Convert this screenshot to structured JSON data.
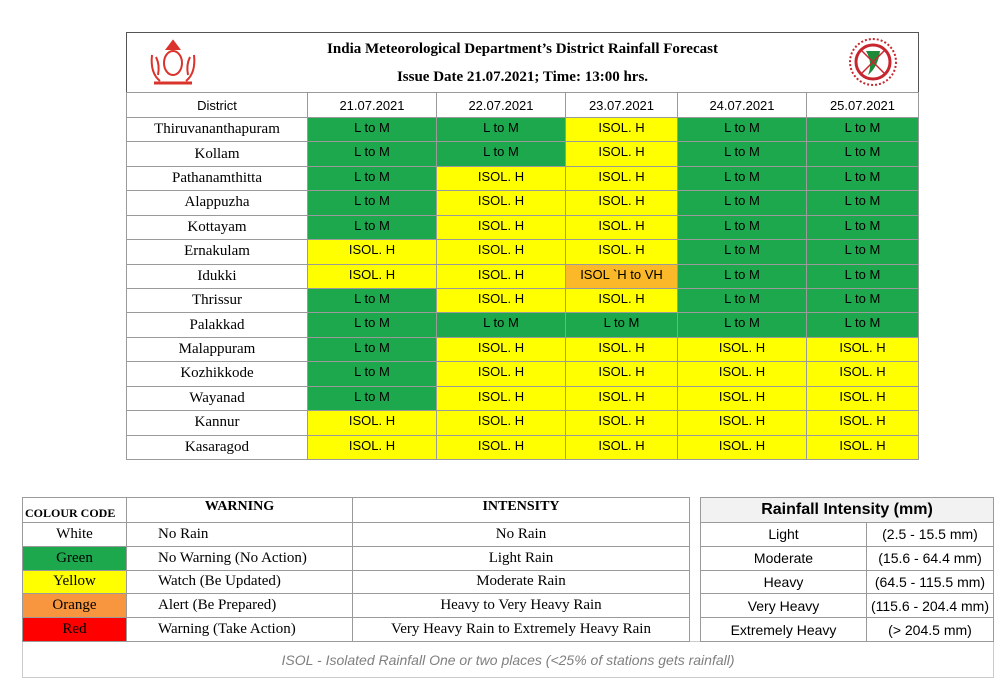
{
  "header": {
    "title": "India Meteorological Department’s District Rainfall Forecast",
    "issue": "Issue Date 21.07.2021; Time: 13:00 hrs."
  },
  "forecast": {
    "columns": [
      "District",
      "21.07.2021",
      "22.07.2021",
      "23.07.2021",
      "24.07.2021",
      "25.07.2021"
    ],
    "rows": [
      [
        "Thiruvananthapuram",
        "L to M",
        "L to M",
        "ISOL. H",
        "L to M",
        "L to M"
      ],
      [
        "Kollam",
        "L to M",
        "L to M",
        "ISOL. H",
        "L to M",
        "L to M"
      ],
      [
        "Pathanamthitta",
        "L to M",
        "ISOL. H",
        "ISOL. H",
        "L to M",
        "L to M"
      ],
      [
        "Alappuzha",
        "L to M",
        "ISOL. H",
        "ISOL. H",
        "L to M",
        "L to M"
      ],
      [
        "Kottayam",
        "L to M",
        "ISOL. H",
        "ISOL. H",
        "L to M",
        "L to M"
      ],
      [
        "Ernakulam",
        "ISOL. H",
        "ISOL. H",
        "ISOL. H",
        "L to M",
        "L to M"
      ],
      [
        "Idukki",
        "ISOL. H",
        "ISOL. H",
        "ISOL `H to VH",
        "L to M",
        "L to M"
      ],
      [
        "Thrissur",
        "L to M",
        "ISOL. H",
        "ISOL. H",
        "L to M",
        "L to M"
      ],
      [
        "Palakkad",
        "L to M",
        "L to M",
        "L to M",
        "L to M",
        "L to M"
      ],
      [
        "Malappuram",
        "L to M",
        "ISOL. H",
        "ISOL. H",
        "ISOL. H",
        "ISOL. H"
      ],
      [
        "Kozhikkode",
        "L to M",
        "ISOL. H",
        "ISOL. H",
        "ISOL. H",
        "ISOL. H"
      ],
      [
        "Wayanad",
        "L to M",
        "ISOL. H",
        "ISOL. H",
        "ISOL. H",
        "ISOL. H"
      ],
      [
        "Kannur",
        "ISOL. H",
        "ISOL. H",
        "ISOL. H",
        "ISOL. H",
        "ISOL. H"
      ],
      [
        "Kasaragod",
        "ISOL. H",
        "ISOL. H",
        "ISOL. H",
        "ISOL. H",
        "ISOL. H"
      ]
    ],
    "cell_colors": {
      "L to M": "#1ea84e",
      "ISOL. H": "#ffff00",
      "ISOL `H to VH": "#fbb829"
    }
  },
  "legend": {
    "columns": [
      "COLOUR CODE",
      "WARNING",
      "INTENSITY"
    ],
    "rows": [
      [
        "White",
        "No Rain",
        "No Rain"
      ],
      [
        "Green",
        "No Warning (No Action)",
        "Light Rain"
      ],
      [
        "Yellow",
        "Watch (Be Updated)",
        "Moderate Rain"
      ],
      [
        "Orange",
        "Alert (Be Prepared)",
        "Heavy to Very Heavy Rain"
      ],
      [
        "Red",
        "Warning (Take Action)",
        "Very Heavy Rain to Extremely Heavy Rain"
      ]
    ],
    "colors": [
      "#ffffff",
      "#1ea84e",
      "#ffff00",
      "#f7963f",
      "#ff0000"
    ]
  },
  "intensity": {
    "title": "Rainfall Intensity (mm)",
    "rows": [
      [
        "Light",
        "(2.5 - 15.5 mm)"
      ],
      [
        "Moderate",
        "(15.6 - 64.4 mm)"
      ],
      [
        "Heavy",
        "(64.5 - 115.5 mm)"
      ],
      [
        "Very Heavy",
        "(115.6 - 204.4 mm)"
      ],
      [
        "Extremely Heavy",
        "(> 204.5 mm)"
      ]
    ]
  },
  "note": "ISOL - Isolated Rainfall One or two places (<25% of stations gets rainfall)"
}
